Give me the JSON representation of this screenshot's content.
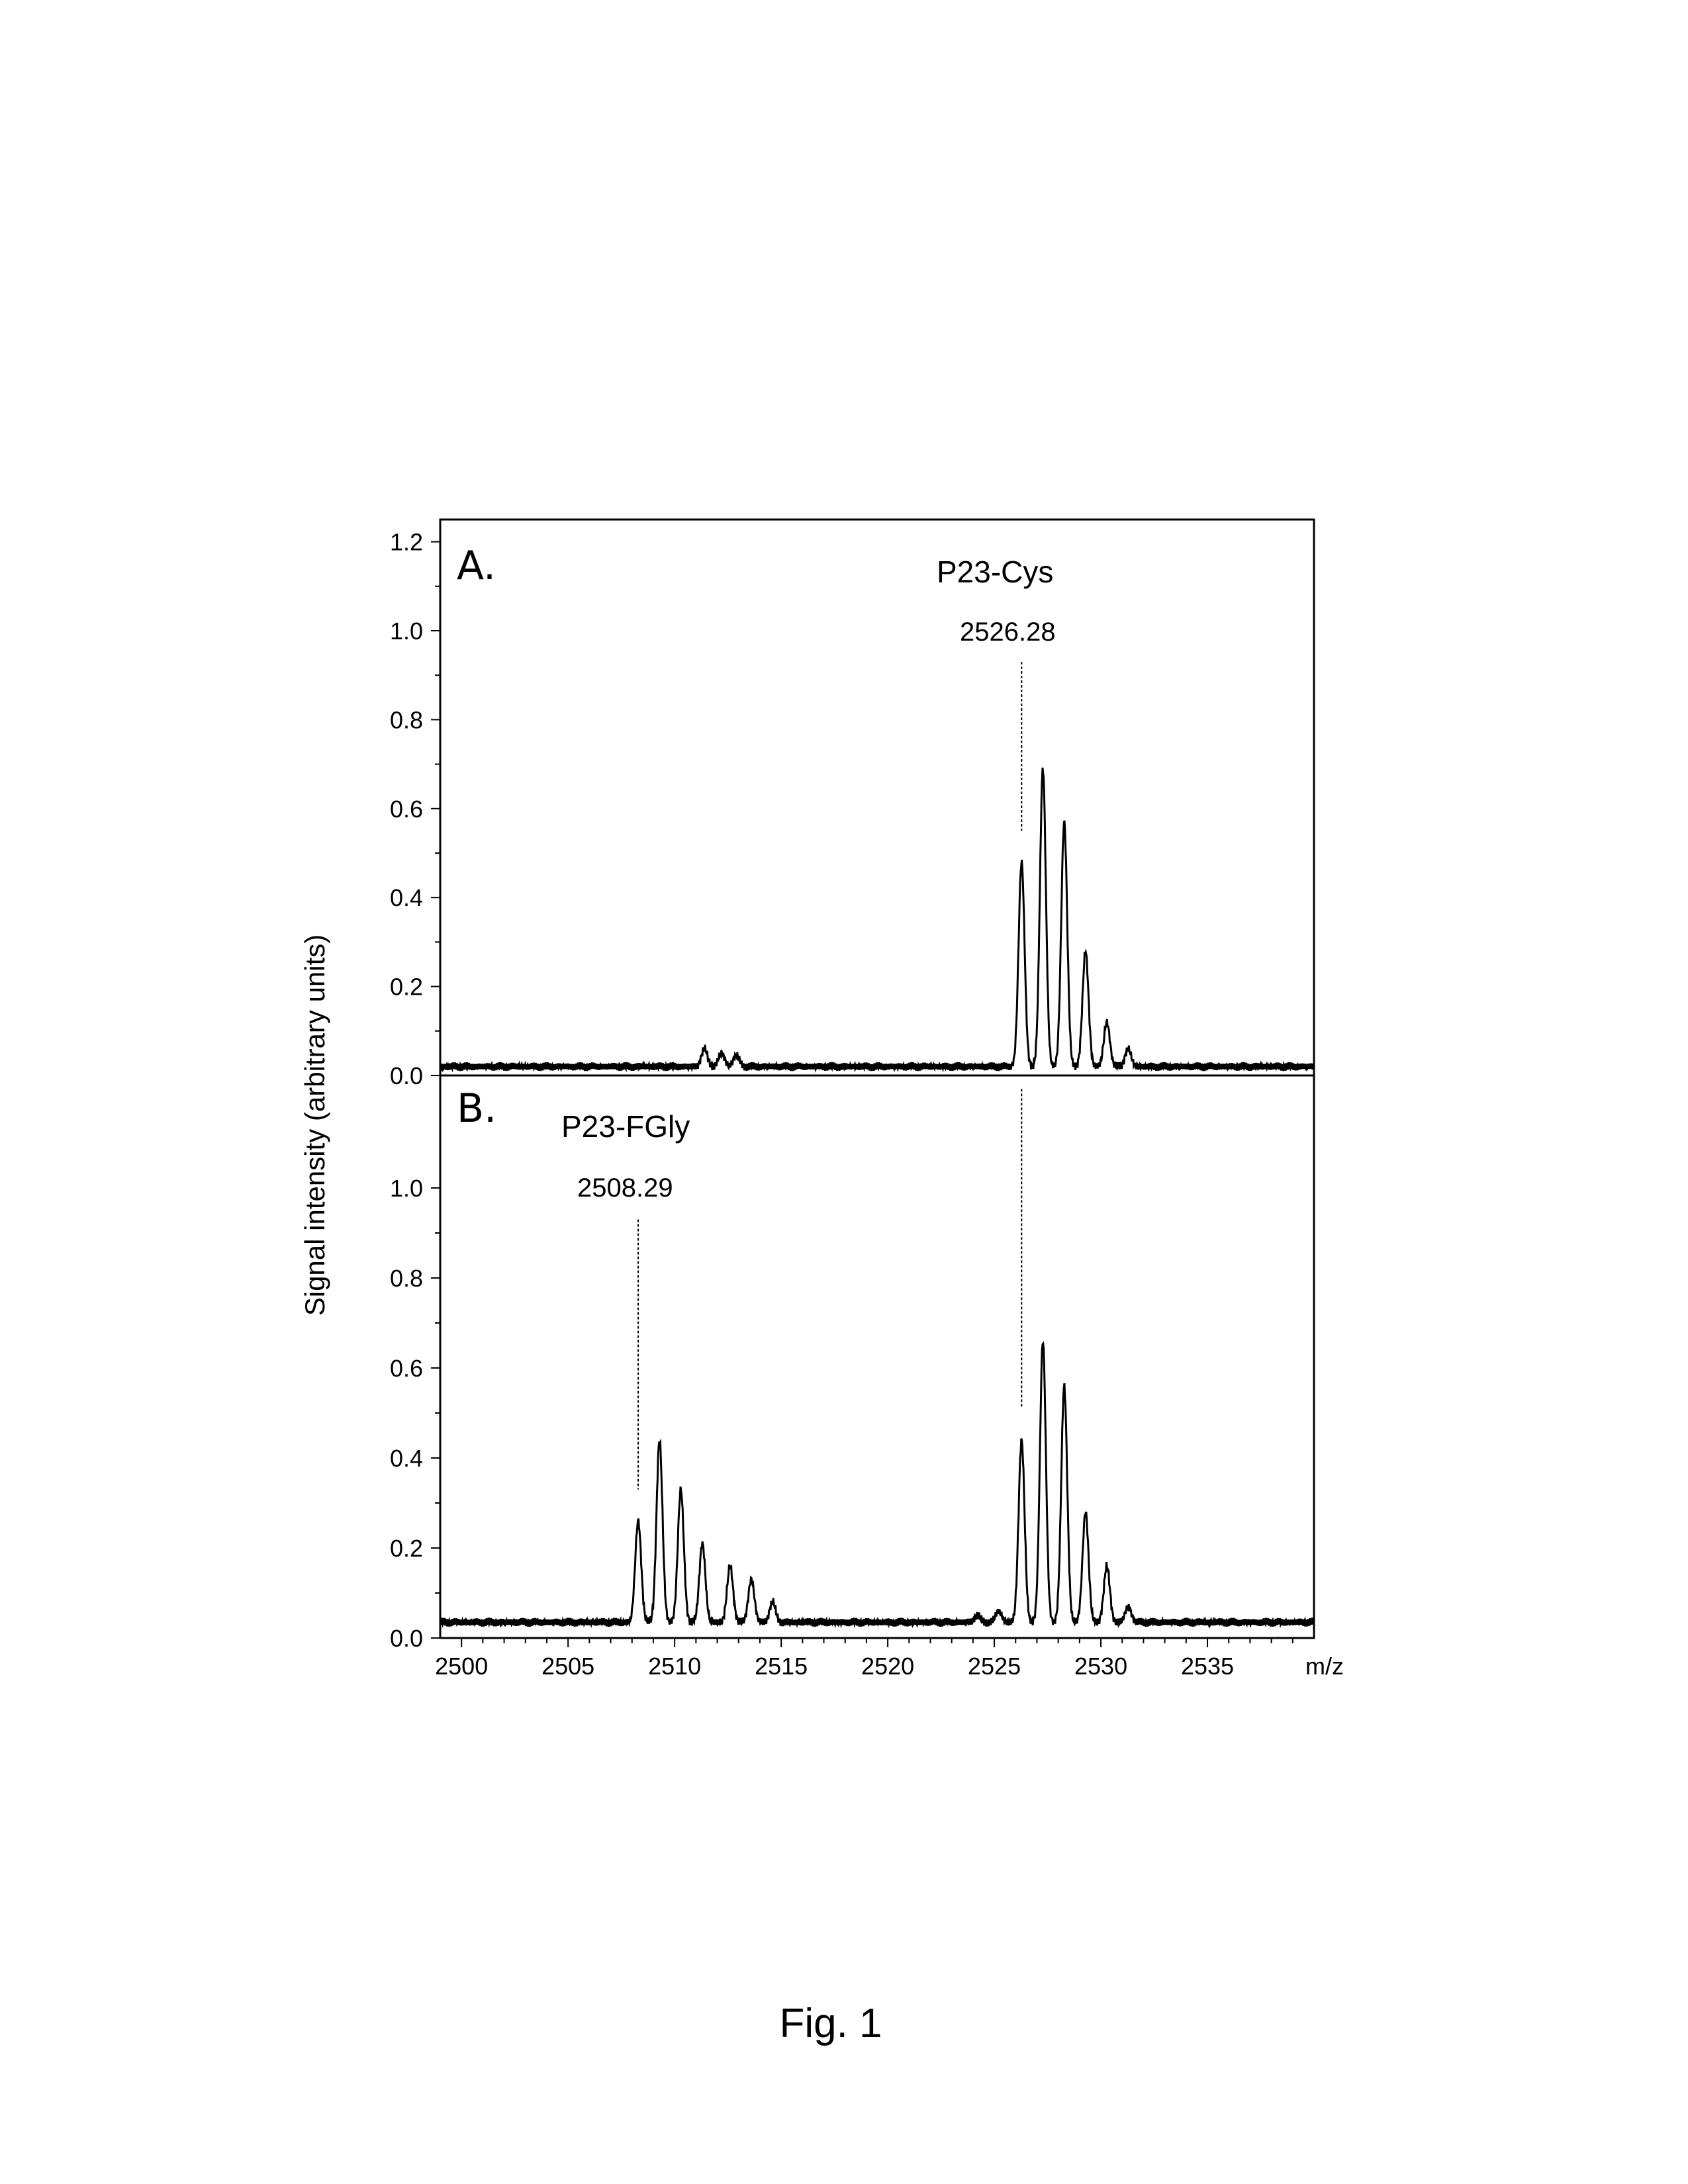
{
  "figure": {
    "caption": "Fig. 1"
  },
  "chart_data": [
    {
      "type": "line",
      "panel_label": "A.",
      "ylabel": "Signal intensity (arbitrary units)",
      "xlabel": "m/z",
      "xlim": [
        2499,
        2540
      ],
      "ylim": [
        0,
        1.25
      ],
      "x_ticks": [
        2500,
        2505,
        2510,
        2515,
        2520,
        2525,
        2530,
        2535
      ],
      "y_ticks": [
        0.0,
        0.2,
        0.4,
        0.6,
        0.8,
        1.0,
        1.2
      ],
      "y_tick_labels": [
        "0.0",
        "0.2",
        "0.4",
        "0.6",
        "0.8",
        "1.0",
        "1.2"
      ],
      "baseline": 0.02,
      "annotations": [
        {
          "name": "P23-Cys",
          "mass": "2526.28",
          "x": 2526.28
        }
      ],
      "peaks": [
        {
          "x": 2511.4,
          "y": 0.06
        },
        {
          "x": 2512.2,
          "y": 0.05
        },
        {
          "x": 2512.9,
          "y": 0.045
        },
        {
          "x": 2526.28,
          "y": 0.48
        },
        {
          "x": 2527.28,
          "y": 0.69
        },
        {
          "x": 2528.28,
          "y": 0.57
        },
        {
          "x": 2529.28,
          "y": 0.28
        },
        {
          "x": 2530.28,
          "y": 0.12
        },
        {
          "x": 2531.28,
          "y": 0.06
        }
      ]
    },
    {
      "type": "line",
      "panel_label": "B.",
      "ylabel": "Signal intensity (arbitrary units)",
      "xlabel": "m/z",
      "xlim": [
        2499,
        2540
      ],
      "ylim": [
        0,
        1.25
      ],
      "x_ticks": [
        2500,
        2505,
        2510,
        2515,
        2520,
        2525,
        2530,
        2535
      ],
      "x_tick_labels": [
        "2500",
        "2505",
        "2510",
        "2515",
        "2520",
        "2525",
        "2530",
        "2535"
      ],
      "y_ticks": [
        0.0,
        0.2,
        0.4,
        0.6,
        0.8,
        1.0
      ],
      "y_tick_labels": [
        "0.0",
        "0.2",
        "0.4",
        "0.6",
        "0.8",
        "1.0"
      ],
      "baseline": 0.035,
      "annotations": [
        {
          "name": "P23-FGly",
          "mass": "2508.29",
          "x": 2508.29
        },
        {
          "name": "",
          "mass": "",
          "x": 2526.28
        }
      ],
      "peaks": [
        {
          "x": 2508.29,
          "y": 0.26
        },
        {
          "x": 2509.29,
          "y": 0.44
        },
        {
          "x": 2510.29,
          "y": 0.33
        },
        {
          "x": 2511.3,
          "y": 0.21
        },
        {
          "x": 2512.6,
          "y": 0.16
        },
        {
          "x": 2513.6,
          "y": 0.13
        },
        {
          "x": 2514.6,
          "y": 0.08
        },
        {
          "x": 2524.2,
          "y": 0.05
        },
        {
          "x": 2525.2,
          "y": 0.06
        },
        {
          "x": 2526.28,
          "y": 0.44
        },
        {
          "x": 2527.28,
          "y": 0.66
        },
        {
          "x": 2528.28,
          "y": 0.56
        },
        {
          "x": 2529.28,
          "y": 0.28
        },
        {
          "x": 2530.28,
          "y": 0.16
        },
        {
          "x": 2531.28,
          "y": 0.07
        }
      ]
    }
  ]
}
